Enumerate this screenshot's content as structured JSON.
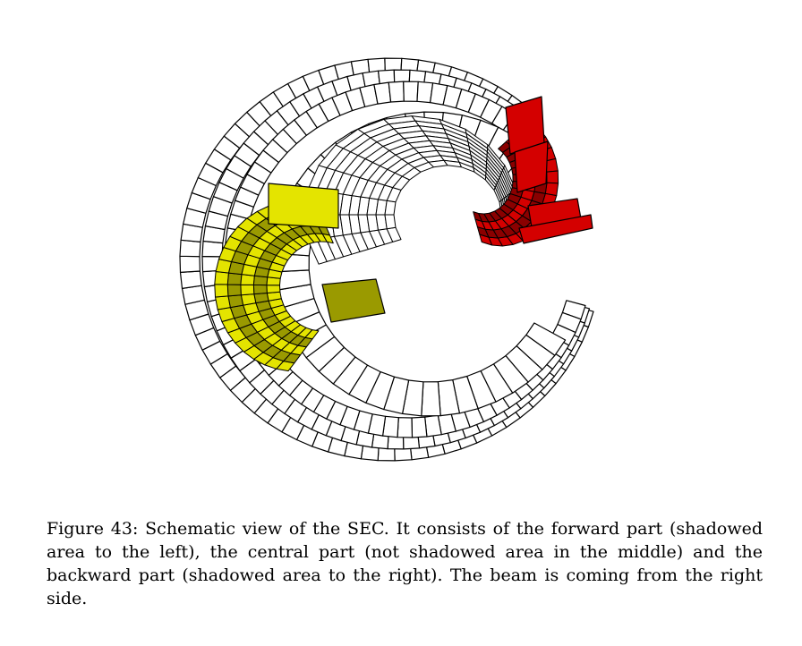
{
  "figure": {
    "subject": "Schematic 3D view of the SEC calorimeter cylinder (cut-away)",
    "colors": {
      "forward_part": "#e4e400",
      "forward_part_dark": "#9a9a00",
      "central_part": "#ffffff",
      "backward_part": "#d40000",
      "backward_part_dark": "#8a0000",
      "outline": "#000000"
    }
  },
  "caption": {
    "label": "Figure 43:",
    "text": "Schematic view of the SEC. It consists of the forward part (shadowed area to the left), the central part (not shadowed area in the middle) and the backward part (shadowed area to the right). The beam is coming from the right side."
  }
}
